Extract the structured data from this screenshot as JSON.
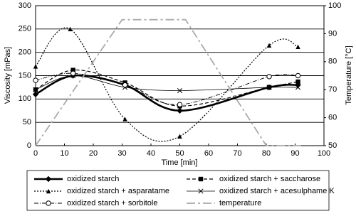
{
  "chart_data": {
    "type": "line",
    "x_label": "Time [min]",
    "y_label": "Viscosity [mPas]",
    "y2_label": "Temperature [°C]",
    "xlim": [
      0,
      100
    ],
    "xticks": [
      0,
      10,
      20,
      30,
      40,
      50,
      60,
      70,
      80,
      90,
      100
    ],
    "ylim": [
      0,
      300
    ],
    "yticks": [
      0,
      50,
      100,
      150,
      200,
      250,
      300
    ],
    "y2lim": [
      50,
      100
    ],
    "y2ticks": [
      50,
      60,
      70,
      80,
      90,
      100
    ],
    "grid": true,
    "series": [
      {
        "name": "oxidized starch",
        "color": "#000000",
        "width": 2.6,
        "dash": "none",
        "marker": "diamond",
        "x": [
          0,
          13,
          31,
          50,
          81,
          91
        ],
        "values": [
          110,
          150,
          130,
          75,
          125,
          130
        ]
      },
      {
        "name": "oxidized starch + saccharose",
        "color": "#000000",
        "width": 1.2,
        "dash": "5 3",
        "marker": "square",
        "x": [
          0,
          13,
          31,
          50,
          81,
          91
        ],
        "values": [
          120,
          162,
          135,
          85,
          125,
          137
        ]
      },
      {
        "name": "oxidized starch + asparatame",
        "color": "#000000",
        "width": 1.2,
        "dash": "2 2",
        "marker": "triangle",
        "x": [
          0,
          12,
          31,
          50,
          81,
          91
        ],
        "values": [
          170,
          250,
          57,
          20,
          215,
          212
        ]
      },
      {
        "name": "oxidized starch + acesulphame K",
        "color": "#000000",
        "width": 0.8,
        "dash": "none",
        "marker": "cross",
        "x": [
          0,
          13,
          31,
          50,
          81,
          91
        ],
        "values": [
          120,
          150,
          125,
          118,
          125,
          125
        ]
      },
      {
        "name": "oxidized starch + sorbitole",
        "color": "#000000",
        "width": 0.9,
        "dash": "6 2 1 2",
        "marker": "circle",
        "x": [
          0,
          13,
          31,
          50,
          81,
          91
        ],
        "values": [
          140,
          155,
          130,
          88,
          148,
          150
        ]
      },
      {
        "name": "temperature",
        "color": "#aaaaaa",
        "width": 1.8,
        "dash": "12 4 3 4",
        "marker": "none",
        "axis": "y2",
        "x": [
          0,
          30,
          52,
          80,
          92
        ],
        "values": [
          50,
          95,
          95,
          50,
          50
        ]
      }
    ]
  }
}
